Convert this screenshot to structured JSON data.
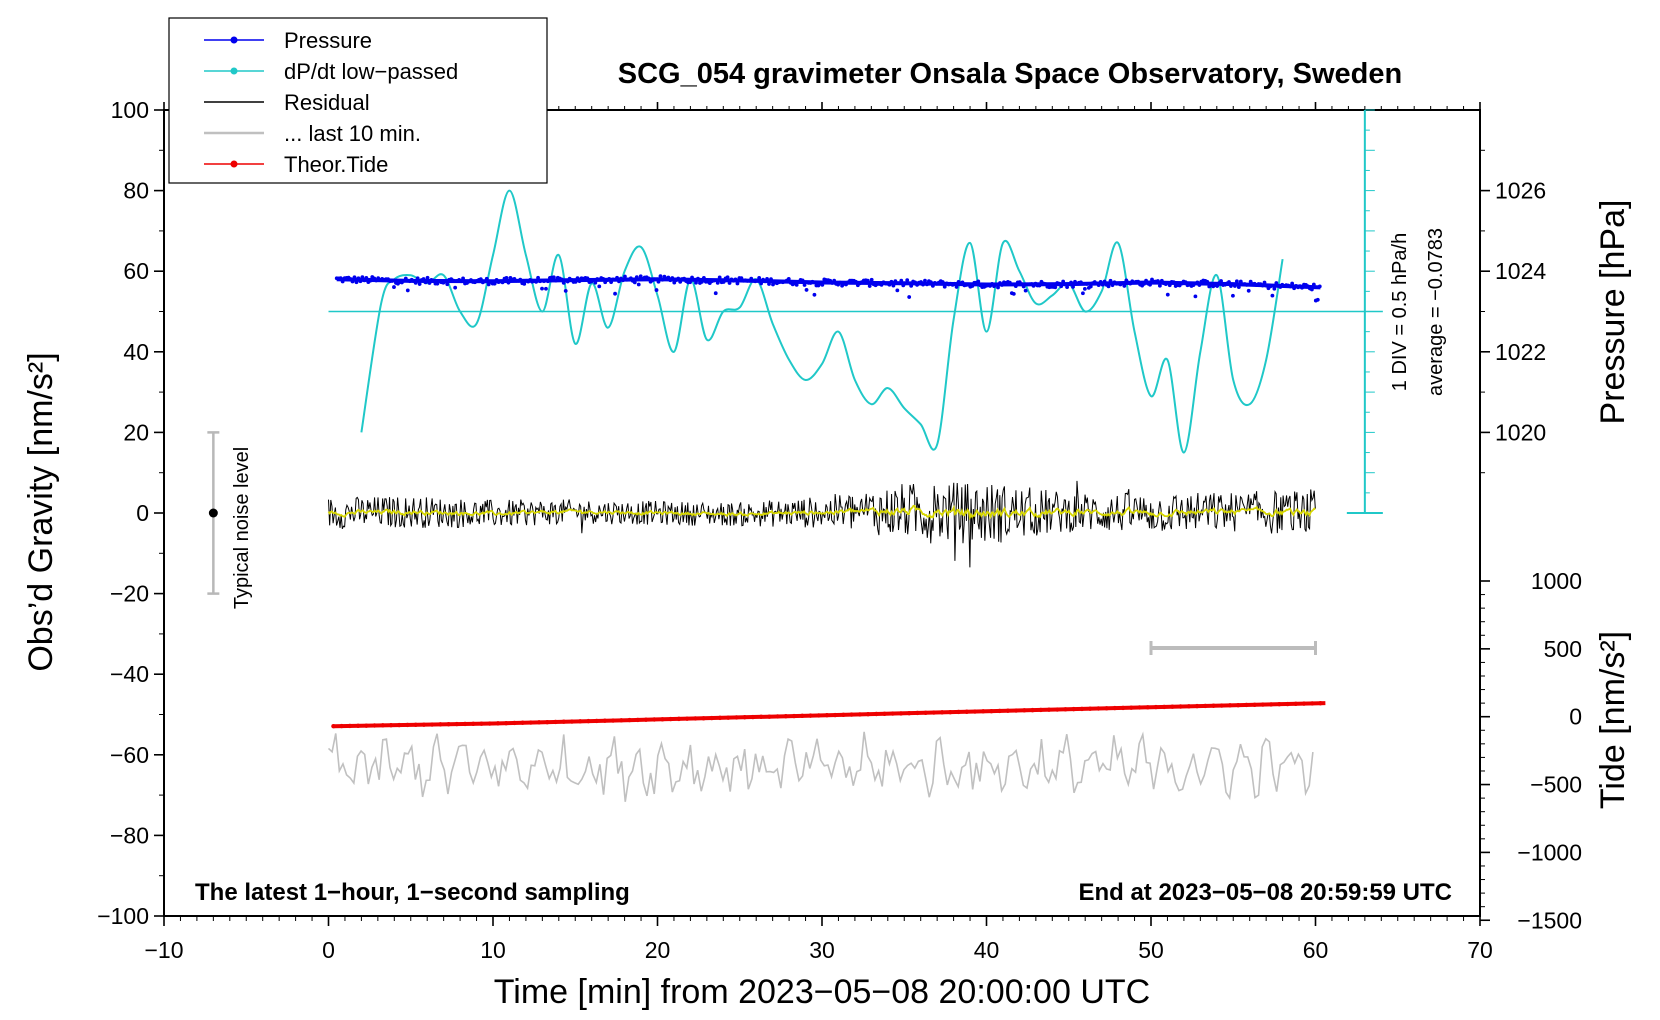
{
  "chart_data": {
    "type": "line",
    "title": "SCG_054 gravimeter Onsala Space Observatory, Sweden",
    "xlabel": "Time [min] from 2023−05−08 20:00:00 UTC",
    "ylabel_left": "Obs’d Gravity [nm/s²]",
    "ylabel_pressure": "Pressure [hPa]",
    "ylabel_tide": "Tide [nm/s²]",
    "xlim": [
      -10,
      70
    ],
    "ylim": [
      -100,
      100
    ],
    "pressure_lim": [
      1018,
      1028
    ],
    "tide_lim": [
      -1500,
      1500
    ],
    "x_ticks": [
      "−10",
      "0",
      "10",
      "20",
      "30",
      "40",
      "50",
      "60",
      "70"
    ],
    "x_tick_values": [
      -10,
      0,
      10,
      20,
      30,
      40,
      50,
      60,
      70
    ],
    "y_ticks": [
      "−100",
      "−80",
      "−60",
      "−40",
      "−20",
      "0",
      "20",
      "40",
      "60",
      "80",
      "100"
    ],
    "y_tick_values": [
      -100,
      -80,
      -60,
      -40,
      -20,
      0,
      20,
      40,
      60,
      80,
      100
    ],
    "pressure_ticks": [
      "1020",
      "1022",
      "1024",
      "1026"
    ],
    "pressure_tick_values": [
      1020,
      1022,
      1024,
      1026
    ],
    "tide_ticks": [
      "−1500",
      "−1000",
      "−500",
      "0",
      "500",
      "1000"
    ],
    "tide_tick_values": [
      -1500,
      -1000,
      -500,
      0,
      500,
      1000
    ],
    "legend": [
      {
        "label": "Pressure",
        "color": "#0000ee",
        "marker": true
      },
      {
        "label": "dP/dt low−passed",
        "color": "#20c8c8",
        "marker": true
      },
      {
        "label": "Residual",
        "color": "#000000",
        "marker": false
      },
      {
        "label": "... last 10 min.",
        "color": "#c0c0c0",
        "marker": false
      },
      {
        "label": "Theor.Tide",
        "color": "#ee0000",
        "marker": true
      }
    ],
    "annotations": {
      "bottom_left": "The latest 1−hour, 1−second sampling",
      "bottom_right": "End at 2023−05−08 20:59:59 UTC",
      "noise_label": "Typical noise level",
      "div_label": "1 DIV = 0.5 hPa/h",
      "average_label": "average = −0.0783"
    },
    "noise_bar": {
      "x": -7,
      "y_center": 0,
      "half_range": 20
    },
    "scale_bar_10min": {
      "x_start": 50,
      "x_end": 60,
      "y": -33.5
    },
    "dpdt_axis": {
      "x": 63,
      "y_top": 100,
      "y_bottom": 0,
      "zero_level": 50
    },
    "series": [
      {
        "name": "Pressure",
        "color": "#0000ee",
        "unit": "nm/s2 (display)",
        "x": [
          0.5,
          5,
          10,
          15,
          20,
          25,
          30,
          35,
          40,
          45,
          50,
          55,
          60.3
        ],
        "values": [
          58,
          57.6,
          57.5,
          57.8,
          58,
          57.7,
          57.2,
          57,
          56.7,
          56.8,
          57.2,
          56.8,
          56
        ]
      },
      {
        "name": "dP/dt low−passed",
        "color": "#20c8c8",
        "x": [
          2,
          3.2,
          4,
          5,
          6,
          7,
          8,
          9,
          10,
          11,
          12,
          13,
          14,
          15,
          16,
          17,
          18,
          19,
          20,
          21,
          22,
          23,
          24,
          25,
          26,
          27,
          28,
          29,
          30,
          31,
          32,
          33,
          34,
          35,
          36,
          37,
          38,
          39,
          40,
          41,
          42,
          43,
          44,
          45,
          46,
          47,
          48,
          49,
          50,
          51,
          52,
          53,
          54,
          55,
          56,
          57,
          58
        ],
        "values": [
          20,
          52,
          58,
          59,
          57,
          59,
          50,
          47,
          64,
          80,
          64,
          50,
          64,
          42,
          57,
          46,
          60,
          66,
          54,
          40,
          58,
          43,
          50,
          51,
          58,
          47,
          38,
          33,
          37,
          45,
          33,
          27,
          31,
          26,
          22,
          17,
          48,
          67,
          45,
          67,
          60,
          52,
          54,
          57,
          50,
          55,
          67,
          45,
          29,
          38,
          15,
          40,
          59,
          33,
          27,
          38,
          63
        ]
      },
      {
        "name": "Residual",
        "color": "#000000",
        "x": [
          0,
          5,
          10,
          15,
          20,
          25,
          30,
          35,
          40,
          45,
          50,
          55,
          60
        ],
        "values": [
          0,
          0.3,
          -0.2,
          0.4,
          0,
          -0.3,
          0.2,
          0.5,
          -0.1,
          0.2,
          0,
          0.3,
          0
        ],
        "amplitude_envelope": [
          4,
          4,
          3.5,
          3,
          3,
          3,
          4,
          7,
          8,
          5,
          5,
          5,
          6
        ]
      },
      {
        "name": "... last 10 min.",
        "color": "#c0c0c0",
        "x": [
          0,
          60
        ],
        "center": -63,
        "amplitude": 7
      },
      {
        "name": "Theor.Tide",
        "color": "#ee0000",
        "unit": "nm/s2",
        "x": [
          0.3,
          10,
          20,
          30,
          40,
          50,
          60.6
        ],
        "values": [
          -70,
          -50,
          -20,
          10,
          40,
          70,
          100
        ]
      }
    ]
  }
}
